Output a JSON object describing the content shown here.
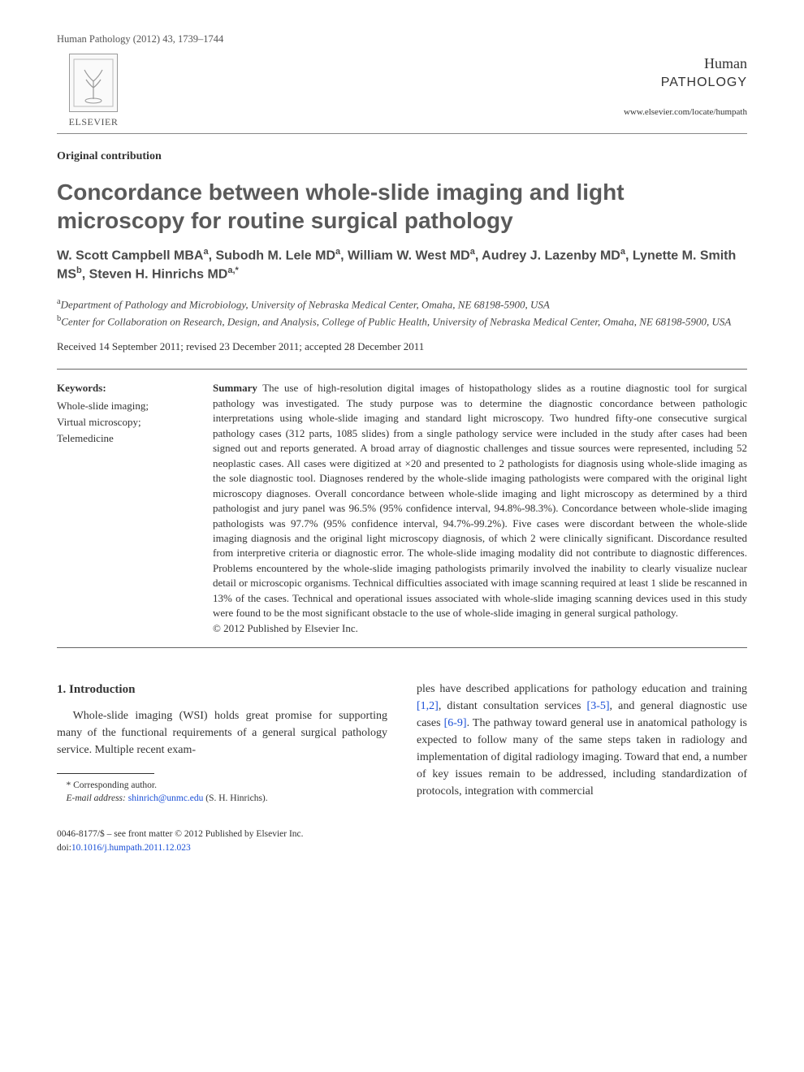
{
  "running_head": "Human Pathology (2012) 43, 1739–1744",
  "publisher_label": "ELSEVIER",
  "journal": {
    "line1": "Human",
    "line2": "PATHOLOGY",
    "url": "www.elsevier.com/locate/humpath"
  },
  "article_type": "Original contribution",
  "title": "Concordance between whole-slide imaging and light microscopy for routine surgical pathology",
  "authors_html": "W. Scott Campbell MBA<sup>a</sup>, Subodh M. Lele MD<sup>a</sup>, William W. West MD<sup>a</sup>, Audrey J. Lazenby MD<sup>a</sup>, Lynette M. Smith MS<sup>b</sup>, Steven H. Hinrichs MD<sup>a,*</sup>",
  "affiliations": {
    "a": "Department of Pathology and Microbiology, University of Nebraska Medical Center, Omaha, NE 68198-5900, USA",
    "b": "Center for Collaboration on Research, Design, and Analysis, College of Public Health, University of Nebraska Medical Center, Omaha, NE 68198-5900, USA"
  },
  "dates": "Received 14 September 2011; revised 23 December 2011; accepted 28 December 2011",
  "keywords": {
    "heading": "Keywords:",
    "items": [
      "Whole-slide imaging;",
      "Virtual microscopy;",
      "Telemedicine"
    ]
  },
  "summary": {
    "heading": "Summary",
    "text": "The use of high-resolution digital images of histopathology slides as a routine diagnostic tool for surgical pathology was investigated. The study purpose was to determine the diagnostic concordance between pathologic interpretations using whole-slide imaging and standard light microscopy. Two hundred fifty-one consecutive surgical pathology cases (312 parts, 1085 slides) from a single pathology service were included in the study after cases had been signed out and reports generated. A broad array of diagnostic challenges and tissue sources were represented, including 52 neoplastic cases. All cases were digitized at ×20 and presented to 2 pathologists for diagnosis using whole-slide imaging as the sole diagnostic tool. Diagnoses rendered by the whole-slide imaging pathologists were compared with the original light microscopy diagnoses. Overall concordance between whole-slide imaging and light microscopy as determined by a third pathologist and jury panel was 96.5% (95% confidence interval, 94.8%-98.3%). Concordance between whole-slide imaging pathologists was 97.7% (95% confidence interval, 94.7%-99.2%). Five cases were discordant between the whole-slide imaging diagnosis and the original light microscopy diagnosis, of which 2 were clinically significant. Discordance resulted from interpretive criteria or diagnostic error. The whole-slide imaging modality did not contribute to diagnostic differences. Problems encountered by the whole-slide imaging pathologists primarily involved the inability to clearly visualize nuclear detail or microscopic organisms. Technical difficulties associated with image scanning required at least 1 slide be rescanned in 13% of the cases. Technical and operational issues associated with whole-slide imaging scanning devices used in this study were found to be the most significant obstacle to the use of whole-slide imaging in general surgical pathology.",
    "copyright": "© 2012 Published by Elsevier Inc."
  },
  "section1": {
    "heading": "1. Introduction"
  },
  "body": {
    "left_p1": "Whole-slide imaging (WSI) holds great promise for supporting many of the functional requirements of a general surgical pathology service. Multiple recent exam-",
    "right_p1_a": "ples have described applications for pathology education and training ",
    "right_ref1": "[1,2]",
    "right_p1_b": ", distant consultation services ",
    "right_ref2": "[3-5]",
    "right_p1_c": ", and general diagnostic use cases ",
    "right_ref3": "[6-9]",
    "right_p1_d": ". The pathway toward general use in anatomical pathology is expected to follow many of the same steps taken in radiology and implementation of digital radiology imaging. Toward that end, a number of key issues remain to be addressed, including standardization of protocols, integration with commercial"
  },
  "footnote": {
    "corresponding": "* Corresponding author.",
    "email_label": "E-mail address:",
    "email": "shinrich@unmc.edu",
    "email_tail": " (S. H. Hinrichs)."
  },
  "bottom": {
    "line1": "0046-8177/$ – see front matter © 2012 Published by Elsevier Inc.",
    "doi_label": "doi:",
    "doi": "10.1016/j.humpath.2011.12.023"
  },
  "colors": {
    "link": "#1a4fd6",
    "heading_gray": "#5a5a5a",
    "rule": "#666666"
  }
}
